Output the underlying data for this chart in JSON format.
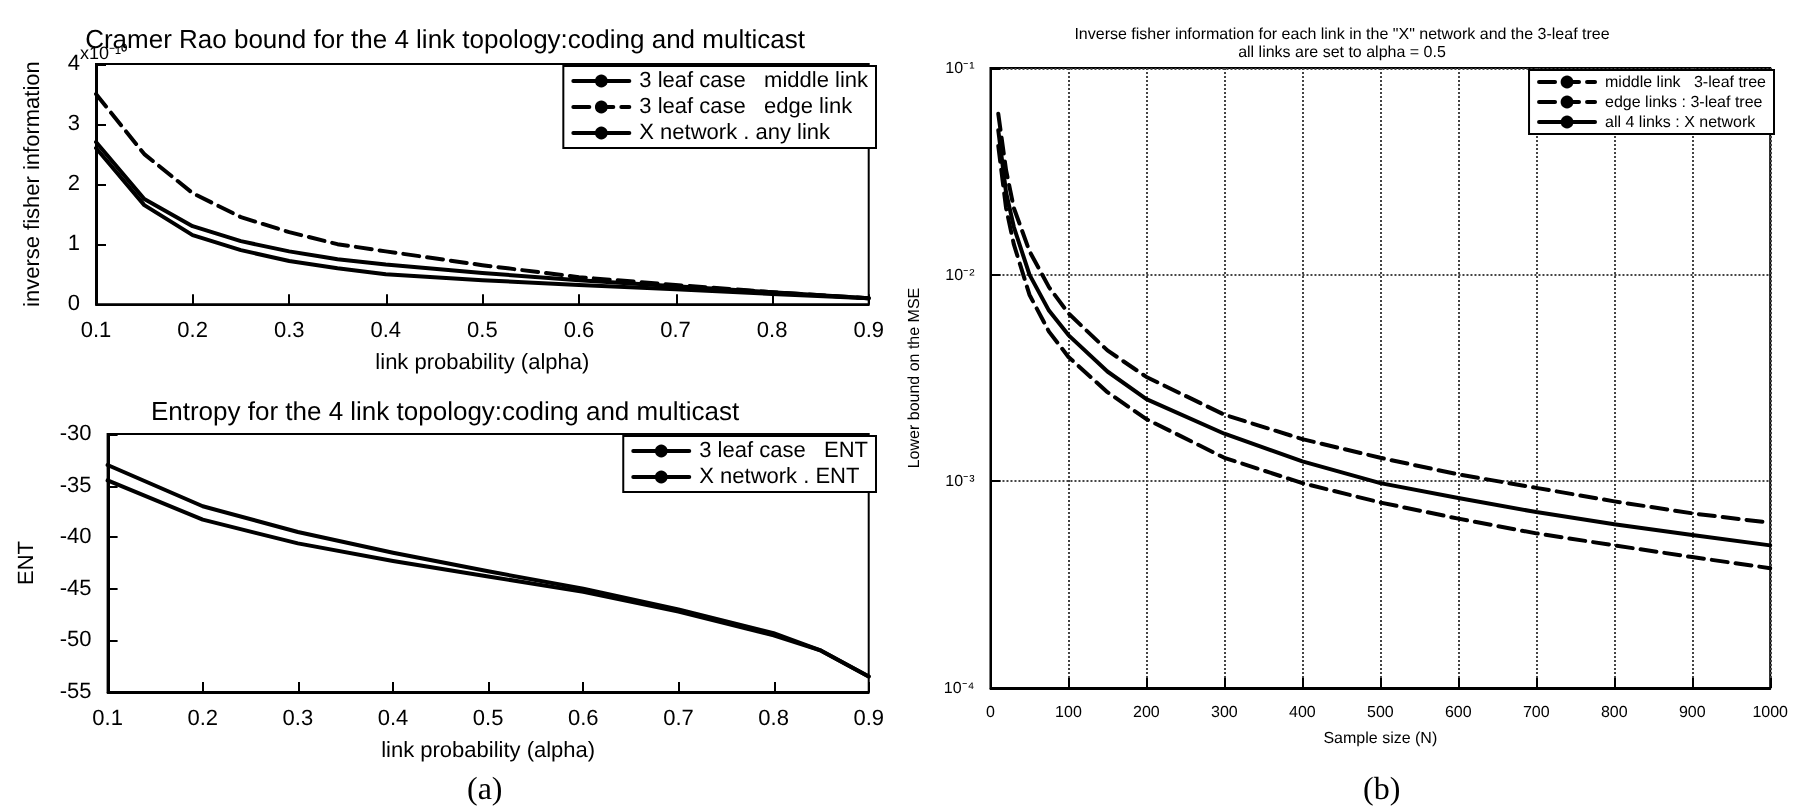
{
  "chart_data": [
    {
      "type": "line",
      "title": "Cramer Rao bound for the 4 link topology:coding and multicast",
      "xlabel": "link probability (alpha)",
      "ylabel": "inverse fisher information",
      "annotations": [
        "x10⁻¹⁰"
      ],
      "x": [
        0.1,
        0.15,
        0.2,
        0.25,
        0.3,
        0.35,
        0.4,
        0.5,
        0.6,
        0.7,
        0.8,
        0.9
      ],
      "series": [
        {
          "name": "3 leaf case   middle link",
          "color": "#000000",
          "line_style": "solid",
          "values": [
            2.7,
            1.75,
            1.3,
            1.05,
            0.88,
            0.75,
            0.66,
            0.52,
            0.4,
            0.3,
            0.2,
            0.1
          ]
        },
        {
          "name": "3 leaf case   edge link",
          "color": "#000000",
          "line_style": "dashed",
          "values": [
            3.5,
            2.5,
            1.85,
            1.45,
            1.2,
            1.0,
            0.88,
            0.65,
            0.45,
            0.32,
            0.2,
            0.1
          ]
        },
        {
          "name": "X network . any link",
          "color": "#000000",
          "line_style": "solid",
          "values": [
            2.6,
            1.65,
            1.15,
            0.9,
            0.72,
            0.6,
            0.5,
            0.4,
            0.32,
            0.25,
            0.17,
            0.1
          ]
        }
      ],
      "xlim": [
        0.1,
        0.9
      ],
      "xticks": [
        0.1,
        0.2,
        0.3,
        0.4,
        0.5,
        0.6,
        0.7,
        0.8,
        0.9
      ],
      "ylim": [
        0,
        4
      ],
      "yticks": [
        0,
        1,
        2,
        3,
        4
      ],
      "grid": false,
      "legend": "top right",
      "marker": "none"
    },
    {
      "type": "line",
      "title": "Entropy for the 4 link topology:coding and multicast",
      "xlabel": "link probability (alpha)",
      "ylabel": "ENT",
      "annotations": [
        "(a)"
      ],
      "x": [
        0.1,
        0.2,
        0.3,
        0.4,
        0.5,
        0.6,
        0.7,
        0.8,
        0.85,
        0.9
      ],
      "series": [
        {
          "name": "3 leaf case   ENT",
          "color": "#000000",
          "line_style": "solid",
          "values": [
            -33,
            -37,
            -39.5,
            -41.5,
            -43.3,
            -45,
            -47,
            -49.3,
            -51,
            -53.5
          ]
        },
        {
          "name": "X network . ENT",
          "color": "#000000",
          "line_style": "solid",
          "values": [
            -34.5,
            -38.3,
            -40.6,
            -42.3,
            -43.8,
            -45.3,
            -47.2,
            -49.5,
            -51,
            -53.5
          ]
        }
      ],
      "xlim": [
        0.1,
        0.9
      ],
      "xticks": [
        0.1,
        0.2,
        0.3,
        0.4,
        0.5,
        0.6,
        0.7,
        0.8,
        0.9
      ],
      "ylim": [
        -55,
        -30
      ],
      "yticks": [
        -55,
        -50,
        -45,
        -40,
        -35,
        -30
      ],
      "grid": false,
      "legend": "top right",
      "marker": "none"
    },
    {
      "type": "line",
      "title": "Inverse fisher information for each link in the \"X\" network and the 3-leaf tree",
      "subtitle": "all links are set to alpha = 0.5",
      "xlabel": "Sample size (N)",
      "ylabel": "Lower bound on the MSE",
      "annotations": [
        "(b)"
      ],
      "x": [
        10,
        20,
        30,
        50,
        75,
        100,
        150,
        200,
        300,
        400,
        500,
        600,
        700,
        800,
        900,
        1000
      ],
      "series": [
        {
          "name": "middle link   3-leaf tree",
          "color": "#000000",
          "line_style": "dashed",
          "values": [
            0.06,
            0.032,
            0.021,
            0.013,
            0.0087,
            0.0065,
            0.0043,
            0.0032,
            0.0021,
            0.0016,
            0.0013,
            0.00108,
            0.00093,
            0.0008,
            0.0007,
            0.00063
          ]
        },
        {
          "name": "edge links : 3-leaf tree",
          "color": "#000000",
          "line_style": "dashed",
          "values": [
            0.042,
            0.021,
            0.014,
            0.008,
            0.0053,
            0.004,
            0.0027,
            0.002,
            0.0013,
            0.00098,
            0.00079,
            0.00066,
            0.00056,
            0.00049,
            0.00043,
            0.00038
          ]
        },
        {
          "name": "all 4 links : X network",
          "color": "#000000",
          "line_style": "solid",
          "values": [
            0.05,
            0.025,
            0.017,
            0.01,
            0.0067,
            0.0051,
            0.0034,
            0.0025,
            0.0017,
            0.00125,
            0.00098,
            0.00083,
            0.00071,
            0.00062,
            0.00055,
            0.00049
          ]
        }
      ],
      "xlim": [
        0,
        1000
      ],
      "xticks": [
        0,
        100,
        200,
        300,
        400,
        500,
        600,
        700,
        800,
        900,
        1000
      ],
      "ylim": [
        0.0001,
        0.1
      ],
      "yticks": [
        {
          "value": 0.0001,
          "label": "10⁻⁴"
        },
        {
          "value": 0.001,
          "label": "10⁻³"
        },
        {
          "value": 0.01,
          "label": "10⁻²"
        },
        {
          "value": 0.1,
          "label": "10⁻¹"
        }
      ],
      "log": "y",
      "grid": true,
      "legend": "top right",
      "marker": "none"
    }
  ]
}
